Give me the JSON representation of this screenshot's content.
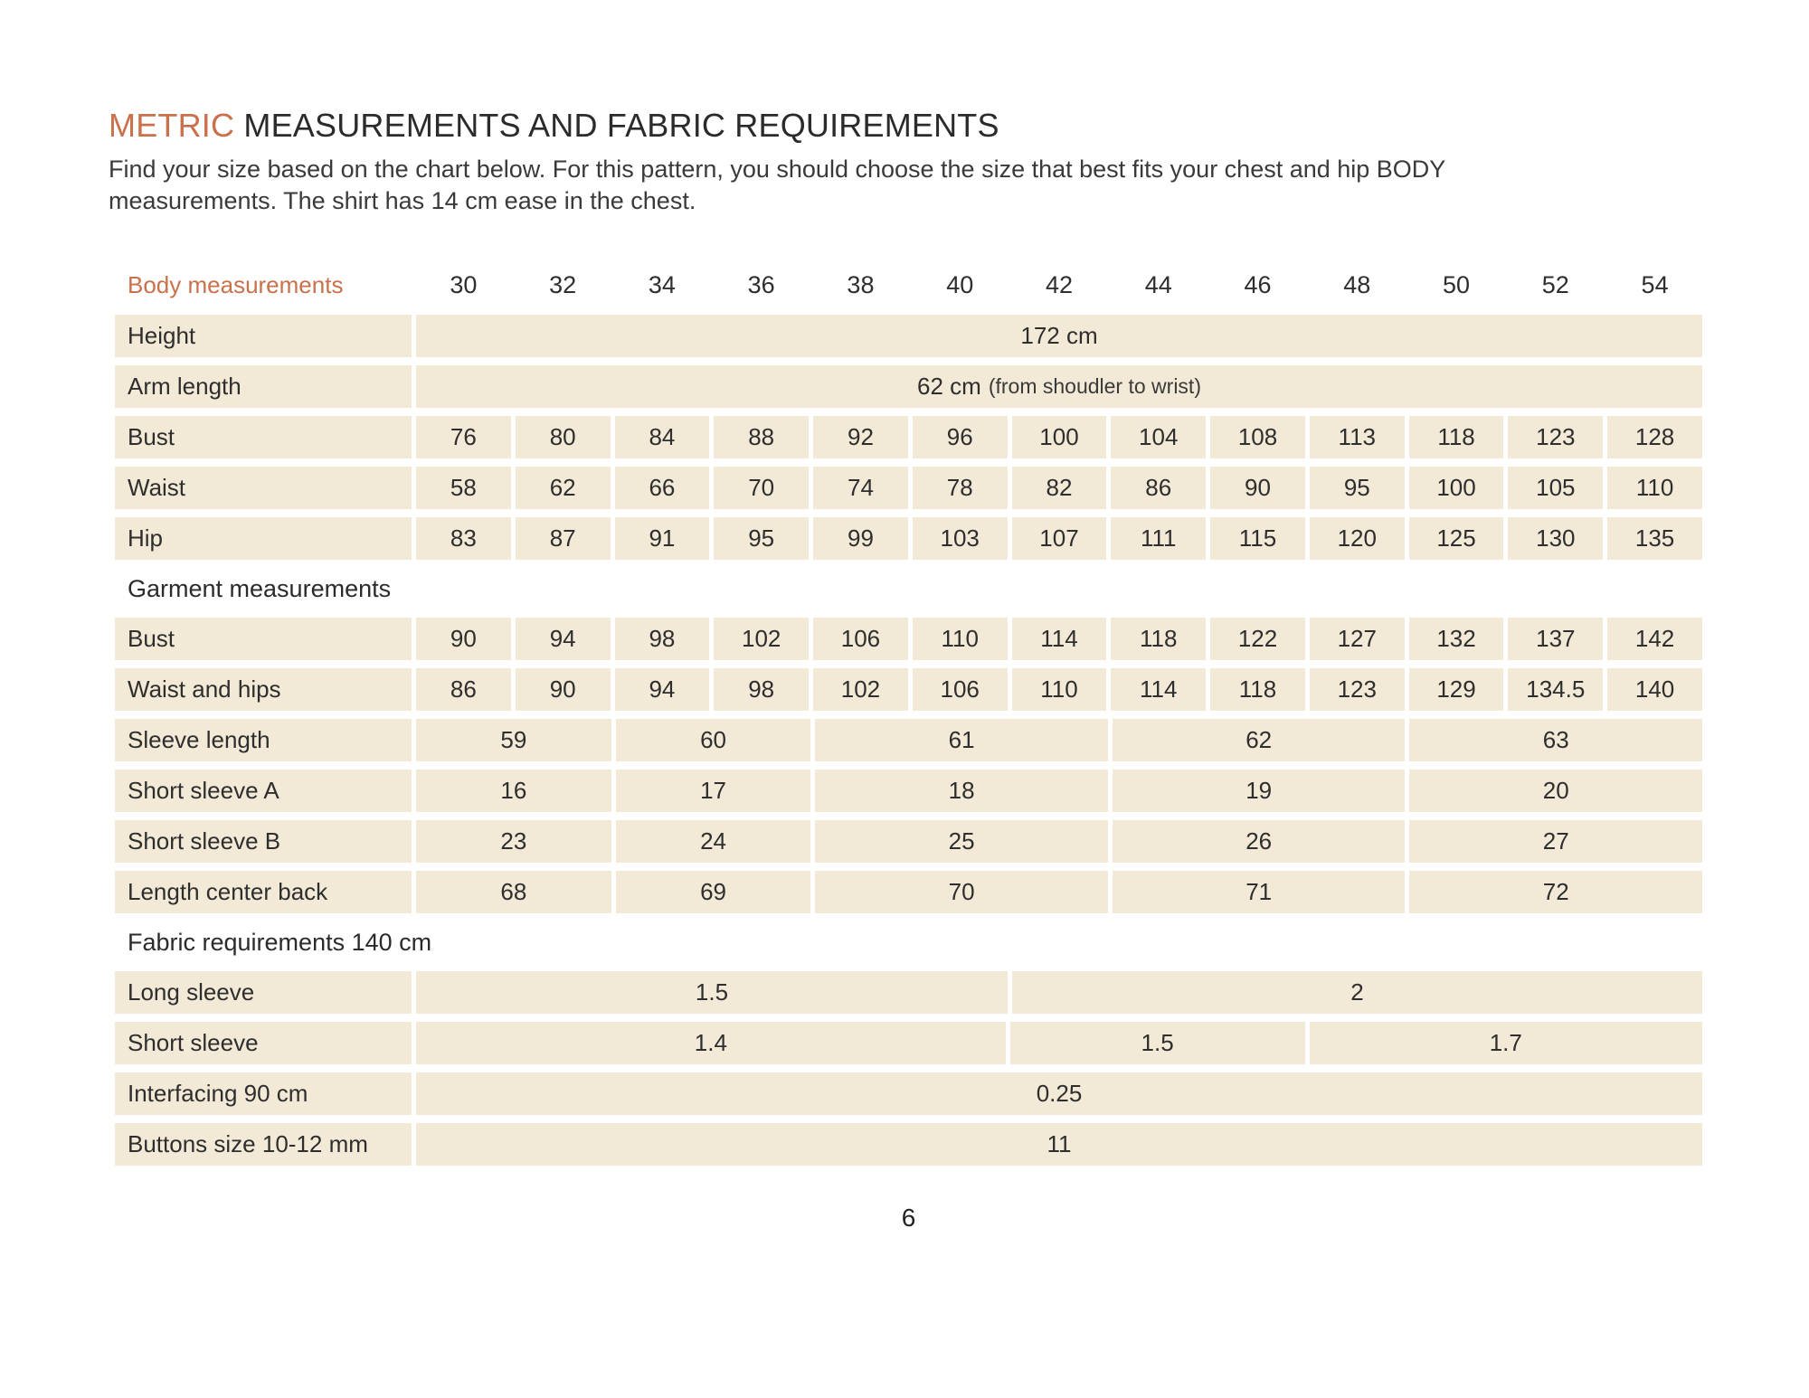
{
  "page": {
    "title": {
      "accent": "METRIC",
      "rest": "MEASUREMENTS AND FABRIC REQUIREMENTS"
    },
    "intro_lines": [
      "Find your size based on the chart below. For this pattern, you should choose the size that best fits your chest and hip BODY",
      "measurements. The shirt has 14 cm ease in the chest."
    ],
    "page_number": "6"
  },
  "colors": {
    "accent": "#c9714b",
    "cell_background": "#f2e9d7",
    "text": "#2e2e2e"
  },
  "table": {
    "header_label": "Body measurements",
    "sizes": [
      "30",
      "32",
      "34",
      "36",
      "38",
      "40",
      "42",
      "44",
      "46",
      "48",
      "50",
      "52",
      "54"
    ],
    "rows": [
      {
        "type": "data",
        "label": "Height",
        "cells": [
          {
            "span": 13,
            "value": "172 cm"
          }
        ]
      },
      {
        "type": "data",
        "label": "Arm length",
        "cells": [
          {
            "span": 13,
            "value": "62 cm",
            "note": "(from shoudler to wrist)"
          }
        ]
      },
      {
        "type": "data",
        "label": "Bust",
        "cells": [
          {
            "span": 1,
            "value": "76"
          },
          {
            "span": 1,
            "value": "80"
          },
          {
            "span": 1,
            "value": "84"
          },
          {
            "span": 1,
            "value": "88"
          },
          {
            "span": 1,
            "value": "92"
          },
          {
            "span": 1,
            "value": "96"
          },
          {
            "span": 1,
            "value": "100"
          },
          {
            "span": 1,
            "value": "104"
          },
          {
            "span": 1,
            "value": "108"
          },
          {
            "span": 1,
            "value": "113"
          },
          {
            "span": 1,
            "value": "118"
          },
          {
            "span": 1,
            "value": "123"
          },
          {
            "span": 1,
            "value": "128"
          }
        ]
      },
      {
        "type": "data",
        "label": "Waist",
        "cells": [
          {
            "span": 1,
            "value": "58"
          },
          {
            "span": 1,
            "value": "62"
          },
          {
            "span": 1,
            "value": "66"
          },
          {
            "span": 1,
            "value": "70"
          },
          {
            "span": 1,
            "value": "74"
          },
          {
            "span": 1,
            "value": "78"
          },
          {
            "span": 1,
            "value": "82"
          },
          {
            "span": 1,
            "value": "86"
          },
          {
            "span": 1,
            "value": "90"
          },
          {
            "span": 1,
            "value": "95"
          },
          {
            "span": 1,
            "value": "100"
          },
          {
            "span": 1,
            "value": "105"
          },
          {
            "span": 1,
            "value": "110"
          }
        ]
      },
      {
        "type": "data",
        "label": "Hip",
        "cells": [
          {
            "span": 1,
            "value": "83"
          },
          {
            "span": 1,
            "value": "87"
          },
          {
            "span": 1,
            "value": "91"
          },
          {
            "span": 1,
            "value": "95"
          },
          {
            "span": 1,
            "value": "99"
          },
          {
            "span": 1,
            "value": "103"
          },
          {
            "span": 1,
            "value": "107"
          },
          {
            "span": 1,
            "value": "111"
          },
          {
            "span": 1,
            "value": "115"
          },
          {
            "span": 1,
            "value": "120"
          },
          {
            "span": 1,
            "value": "125"
          },
          {
            "span": 1,
            "value": "130"
          },
          {
            "span": 1,
            "value": "135"
          }
        ]
      },
      {
        "type": "section",
        "label": "Garment measurements"
      },
      {
        "type": "data",
        "label": "Bust",
        "cells": [
          {
            "span": 1,
            "value": "90"
          },
          {
            "span": 1,
            "value": "94"
          },
          {
            "span": 1,
            "value": "98"
          },
          {
            "span": 1,
            "value": "102"
          },
          {
            "span": 1,
            "value": "106"
          },
          {
            "span": 1,
            "value": "110"
          },
          {
            "span": 1,
            "value": "114"
          },
          {
            "span": 1,
            "value": "118"
          },
          {
            "span": 1,
            "value": "122"
          },
          {
            "span": 1,
            "value": "127"
          },
          {
            "span": 1,
            "value": "132"
          },
          {
            "span": 1,
            "value": "137"
          },
          {
            "span": 1,
            "value": "142"
          }
        ]
      },
      {
        "type": "data",
        "label": "Waist and hips",
        "cells": [
          {
            "span": 1,
            "value": "86"
          },
          {
            "span": 1,
            "value": "90"
          },
          {
            "span": 1,
            "value": "94"
          },
          {
            "span": 1,
            "value": "98"
          },
          {
            "span": 1,
            "value": "102"
          },
          {
            "span": 1,
            "value": "106"
          },
          {
            "span": 1,
            "value": "110"
          },
          {
            "span": 1,
            "value": "114"
          },
          {
            "span": 1,
            "value": "118"
          },
          {
            "span": 1,
            "value": "123"
          },
          {
            "span": 1,
            "value": "129"
          },
          {
            "span": 1,
            "value": "134.5"
          },
          {
            "span": 1,
            "value": "140"
          }
        ]
      },
      {
        "type": "data",
        "label": "Sleeve length",
        "cells": [
          {
            "span": 2,
            "value": "59"
          },
          {
            "span": 2,
            "value": "60"
          },
          {
            "span": 3,
            "value": "61"
          },
          {
            "span": 3,
            "value": "62"
          },
          {
            "span": 3,
            "value": "63"
          }
        ]
      },
      {
        "type": "data",
        "label": "Short sleeve A",
        "cells": [
          {
            "span": 2,
            "value": "16"
          },
          {
            "span": 2,
            "value": "17"
          },
          {
            "span": 3,
            "value": "18"
          },
          {
            "span": 3,
            "value": "19"
          },
          {
            "span": 3,
            "value": "20"
          }
        ]
      },
      {
        "type": "data",
        "label": "Short sleeve B",
        "cells": [
          {
            "span": 2,
            "value": "23"
          },
          {
            "span": 2,
            "value": "24"
          },
          {
            "span": 3,
            "value": "25"
          },
          {
            "span": 3,
            "value": "26"
          },
          {
            "span": 3,
            "value": "27"
          }
        ]
      },
      {
        "type": "data",
        "label": "Length center back",
        "cells": [
          {
            "span": 2,
            "value": "68"
          },
          {
            "span": 2,
            "value": "69"
          },
          {
            "span": 3,
            "value": "70"
          },
          {
            "span": 3,
            "value": "71"
          },
          {
            "span": 3,
            "value": "72"
          }
        ]
      },
      {
        "type": "section",
        "label": "Fabric requirements 140 cm"
      },
      {
        "type": "data",
        "label": "Long sleeve",
        "cells": [
          {
            "span": 6,
            "value": "1.5"
          },
          {
            "span": 7,
            "value": "2"
          }
        ]
      },
      {
        "type": "data",
        "label": "Short sleeve",
        "cells": [
          {
            "span": 6,
            "value": "1.4"
          },
          {
            "span": 3,
            "value": "1.5"
          },
          {
            "span": 4,
            "value": "1.7"
          }
        ]
      },
      {
        "type": "data",
        "label": "Interfacing 90 cm",
        "cells": [
          {
            "span": 13,
            "value": "0.25"
          }
        ]
      },
      {
        "type": "data",
        "label": "Buttons size 10-12 mm",
        "cells": [
          {
            "span": 13,
            "value": "11"
          }
        ]
      }
    ]
  }
}
